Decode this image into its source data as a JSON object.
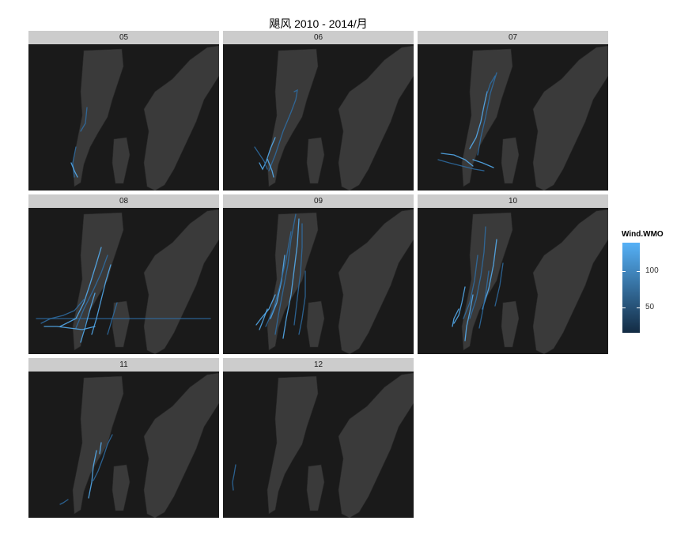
{
  "chart_data": {
    "type": "small-multiples-map",
    "title": "飓风 2010 - 2014/月",
    "facets": [
      "05",
      "06",
      "07",
      "08",
      "09",
      "10",
      "11",
      "12"
    ],
    "colors": {
      "panel_background": "#1a1a1a",
      "land": "#3a3a3a",
      "strip": "#cccccc",
      "scale_low": "#132b43",
      "scale_high": "#56b1f7"
    },
    "legend": {
      "title": "Wind.WMO",
      "breaks": [
        50,
        100
      ],
      "min": 15,
      "max": 140,
      "placement": "right"
    }
  }
}
